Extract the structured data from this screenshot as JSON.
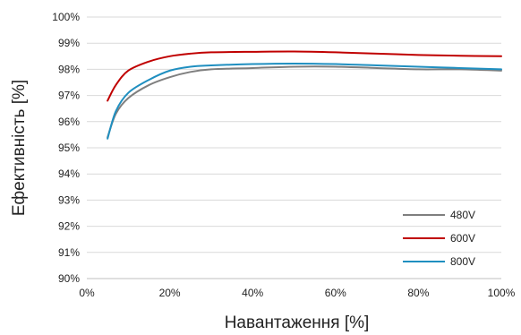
{
  "chart_data": {
    "type": "line",
    "xlabel": "Навантаження [%]",
    "ylabel": "Ефективність [%]",
    "xlim": [
      0,
      100
    ],
    "ylim": [
      90,
      100
    ],
    "x_ticks": [
      0,
      20,
      40,
      60,
      80,
      100
    ],
    "y_ticks": [
      90,
      91,
      92,
      93,
      94,
      95,
      96,
      97,
      98,
      99,
      100
    ],
    "x_tick_labels": [
      "0%",
      "20%",
      "40%",
      "60%",
      "80%",
      "100%"
    ],
    "y_tick_labels": [
      "90%",
      "91%",
      "92%",
      "93%",
      "94%",
      "95%",
      "96%",
      "97%",
      "98%",
      "99%",
      "100%"
    ],
    "grid": "horizontal",
    "legend_position": "bottom-right",
    "series": [
      {
        "name": "480V",
        "color": "#7f7f7f",
        "x": [
          5,
          7,
          10,
          15,
          20,
          25,
          30,
          40,
          50,
          60,
          70,
          80,
          90,
          100
        ],
        "y": [
          95.4,
          96.3,
          96.9,
          97.4,
          97.7,
          97.9,
          98.0,
          98.05,
          98.1,
          98.1,
          98.05,
          98.0,
          98.0,
          97.95
        ]
      },
      {
        "name": "600V",
        "color": "#c00000",
        "x": [
          5,
          7,
          10,
          15,
          20,
          25,
          30,
          40,
          50,
          60,
          70,
          80,
          90,
          100
        ],
        "y": [
          96.8,
          97.4,
          97.95,
          98.3,
          98.5,
          98.6,
          98.65,
          98.67,
          98.68,
          98.65,
          98.6,
          98.55,
          98.52,
          98.5
        ]
      },
      {
        "name": "800V",
        "color": "#1f8fc0",
        "x": [
          5,
          7,
          10,
          15,
          20,
          25,
          30,
          40,
          50,
          60,
          70,
          80,
          90,
          100
        ],
        "y": [
          95.35,
          96.4,
          97.1,
          97.6,
          97.95,
          98.1,
          98.15,
          98.2,
          98.22,
          98.2,
          98.15,
          98.1,
          98.05,
          98.0
        ]
      }
    ]
  }
}
